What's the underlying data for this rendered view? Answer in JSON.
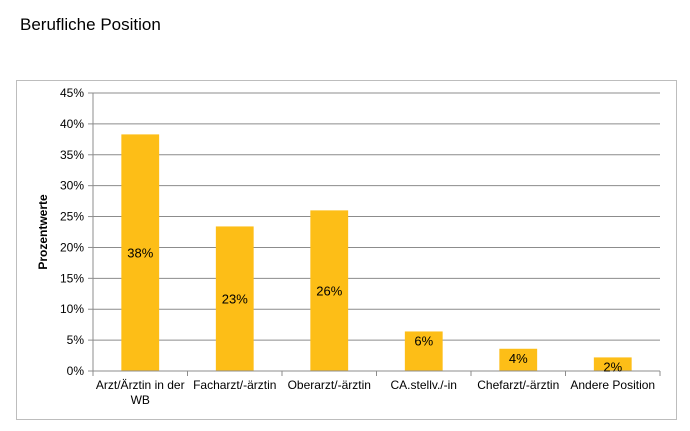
{
  "page": {
    "title": "Berufliche Position"
  },
  "chart_data": {
    "type": "bar",
    "title": "",
    "xlabel": "",
    "ylabel": "Prozentwerte",
    "ylim": [
      0,
      45
    ],
    "y_ticks": [
      0,
      5,
      10,
      15,
      20,
      25,
      30,
      35,
      40,
      45
    ],
    "y_tick_suffix": "%",
    "grid": true,
    "legend": "none",
    "bar_color": "#FDBE17",
    "categories": [
      [
        "Arzt/Ärztin in der",
        "WB"
      ],
      [
        "Facharzt/-ärztin"
      ],
      [
        "Oberarzt/-ärztin"
      ],
      [
        "CA.stellv./-in"
      ],
      [
        "Chefarzt/-ärztin"
      ],
      [
        "Andere Position"
      ]
    ],
    "values": [
      38.3,
      23.4,
      26.0,
      6.4,
      3.6,
      2.2
    ],
    "data_labels": [
      "38%",
      "23%",
      "26%",
      "6%",
      "4%",
      "2%"
    ]
  }
}
